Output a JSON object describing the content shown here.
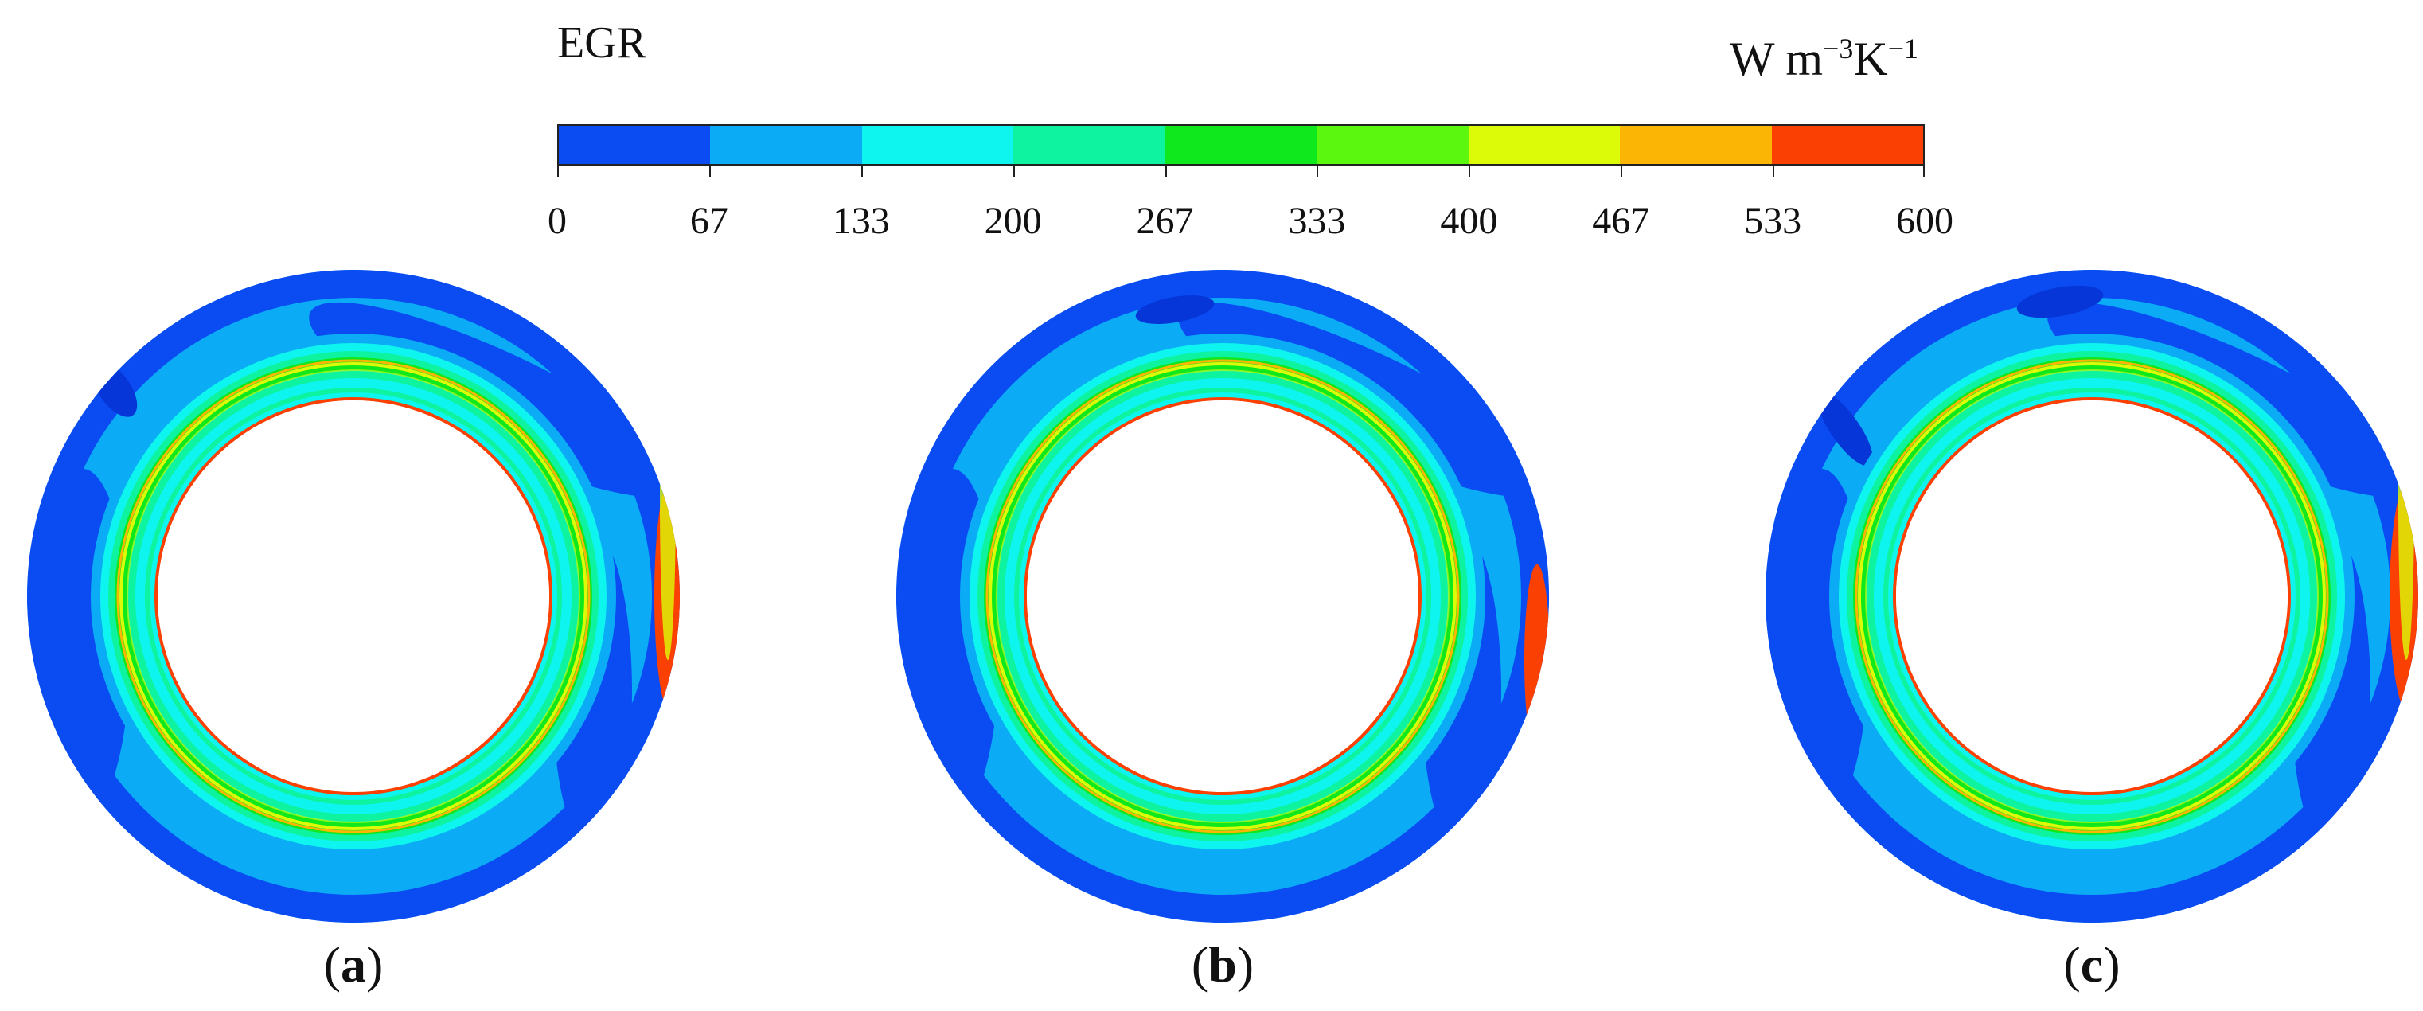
{
  "figure": {
    "colorbar_title": "EGR",
    "unit": {
      "base": "W m",
      "exp1": "−3",
      "mid": "K",
      "exp2": "−1"
    },
    "colorbar": {
      "ticks": [
        "0",
        "67",
        "133",
        "200",
        "267",
        "333",
        "400",
        "467",
        "533",
        "600"
      ],
      "colors": [
        "#0a4cf2",
        "#0cabf6",
        "#0ef4ee",
        "#0ef3a0",
        "#0ee81c",
        "#5cf70e",
        "#dcfb08",
        "#fbb504",
        "#fb4004"
      ]
    },
    "panels": [
      {
        "caption": "a"
      },
      {
        "caption": "b"
      },
      {
        "caption": "c"
      }
    ]
  }
}
